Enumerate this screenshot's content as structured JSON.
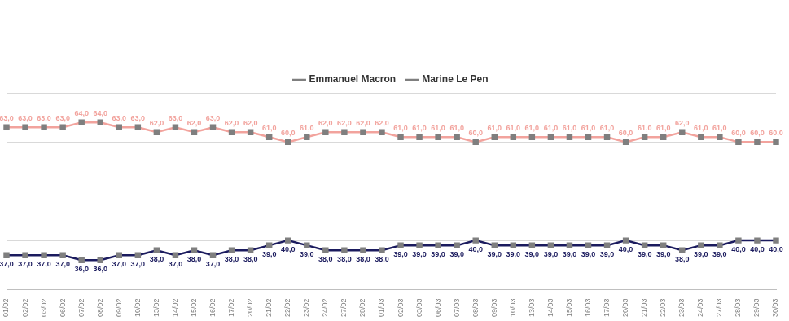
{
  "chart_data": {
    "type": "line",
    "categories": [
      "01/02",
      "02/02",
      "03/02",
      "06/02",
      "07/02",
      "08/02",
      "09/02",
      "10/02",
      "13/02",
      "14/02",
      "15/02",
      "16/02",
      "17/02",
      "20/02",
      "21/02",
      "22/02",
      "23/02",
      "24/02",
      "27/02",
      "28/02",
      "01/03",
      "02/03",
      "03/03",
      "06/03",
      "07/03",
      "08/03",
      "09/03",
      "10/03",
      "13/03",
      "14/03",
      "15/03",
      "16/03",
      "17/03",
      "20/03",
      "21/03",
      "22/03",
      "23/03",
      "24/03",
      "27/03",
      "28/03",
      "29/03",
      "30/03"
    ],
    "series": [
      {
        "name": "Emmanuel Macron",
        "color": "#f2a39d",
        "marker": "square",
        "values": [
          63,
          63,
          63,
          63,
          64,
          64,
          63,
          63,
          62,
          63,
          62,
          63,
          62,
          62,
          61,
          60,
          61,
          62,
          62,
          62,
          62,
          61,
          61,
          61,
          61,
          60,
          61,
          61,
          61,
          61,
          61,
          61,
          61,
          60,
          61,
          61,
          62,
          61,
          61,
          60,
          60,
          60
        ],
        "value_labels": [
          "63,0",
          "63,0",
          "63,0",
          "63,0",
          "64,0",
          "64,0",
          "63,0",
          "63,0",
          "62,0",
          "63,0",
          "62,0",
          "63,0",
          "62,0",
          "62,0",
          "61,0",
          "60,0",
          "61,0",
          "62,0",
          "62,0",
          "62,0",
          "62,0",
          "61,0",
          "61,0",
          "61,0",
          "61,0",
          "60,0",
          "61,0",
          "61,0",
          "61,0",
          "61,0",
          "61,0",
          "61,0",
          "61,0",
          "60,0",
          "61,0",
          "61,0",
          "62,0",
          "61,0",
          "61,0",
          "60,0",
          "60,0",
          "60,0"
        ]
      },
      {
        "name": "Marine Le Pen",
        "color": "#1b1b5e",
        "marker": "square",
        "values": [
          37,
          37,
          37,
          37,
          36,
          36,
          37,
          37,
          38,
          37,
          38,
          37,
          38,
          38,
          39,
          40,
          39,
          38,
          38,
          38,
          38,
          39,
          39,
          39,
          39,
          40,
          39,
          39,
          39,
          39,
          39,
          39,
          39,
          40,
          39,
          39,
          38,
          39,
          39,
          40,
          40,
          40
        ],
        "value_labels": [
          "37,0",
          "37,0",
          "37,0",
          "37,0",
          "36,0",
          "36,0",
          "37,0",
          "37,0",
          "38,0",
          "37,0",
          "38,0",
          "37,0",
          "38,0",
          "38,0",
          "39,0",
          "40,0",
          "39,0",
          "38,0",
          "38,0",
          "38,0",
          "38,0",
          "39,0",
          "39,0",
          "39,0",
          "39,0",
          "40,0",
          "39,0",
          "39,0",
          "39,0",
          "39,0",
          "39,0",
          "39,0",
          "39,0",
          "40,0",
          "39,0",
          "39,0",
          "38,0",
          "39,0",
          "39,0",
          "40,0",
          "40,0",
          "40,0"
        ]
      }
    ],
    "ylim": [
      30,
      70
    ],
    "yticks": [
      30,
      40,
      50,
      60,
      70
    ],
    "grid": true,
    "legend": "top",
    "data_labels": true,
    "tick_labels": "x"
  }
}
